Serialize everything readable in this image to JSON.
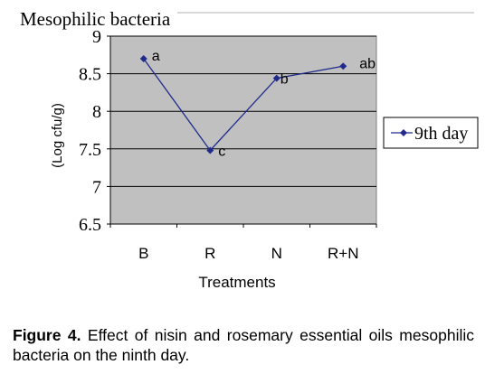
{
  "chart_data": {
    "type": "line",
    "title": "Mesophilic bacteria",
    "xlabel": "Treatments",
    "ylabel": "(Log cfu/g)",
    "categories": [
      "B",
      "R",
      "N",
      "R+N"
    ],
    "series": [
      {
        "name": "9th day",
        "values": [
          8.7,
          7.48,
          8.44,
          8.6
        ],
        "labels": [
          "a",
          "c",
          "b",
          "ab"
        ]
      }
    ],
    "ylim": [
      6.5,
      9
    ],
    "yticks": [
      "9",
      "8.5",
      "8",
      "7.5",
      "7",
      "6.5"
    ],
    "grid": true,
    "legend": "right",
    "colors": {
      "series": "#1f2a8c",
      "plot_bg": "#c0c0c0",
      "grid": "#000000"
    }
  },
  "caption": {
    "label": "Figure 4.",
    "text": "Effect of nisin and rosemary essential oils mesophilic bacteria on the ninth day."
  }
}
